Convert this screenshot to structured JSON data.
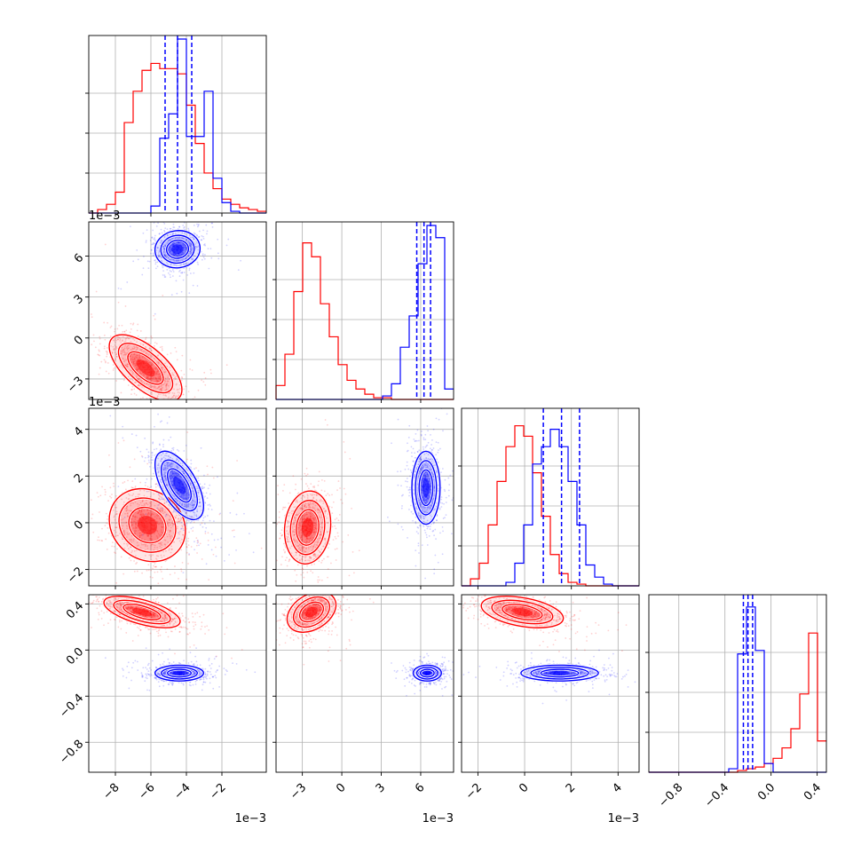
{
  "colors": {
    "red": "#ff0000",
    "blue": "#0000ff",
    "grid": "#b0b0b0",
    "axis": "#000000"
  },
  "axes": [
    {
      "xlim": [
        -9.5,
        0.5
      ],
      "ticks": [
        -8,
        -6,
        -4,
        -2
      ],
      "labels": [
        "−8",
        "−6",
        "−4",
        "−2"
      ],
      "offset": "1e−3"
    },
    {
      "ylim": [
        -4.5,
        8.5
      ],
      "xlim": [
        -5,
        8.5
      ],
      "ticks": [
        -3,
        0,
        3,
        6
      ],
      "labels": [
        "−3",
        "0",
        "3",
        "6"
      ],
      "offset": "1e−3"
    },
    {
      "ylim": [
        -2.7,
        4.9
      ],
      "xlim": [
        -2.7,
        4.9
      ],
      "ticks": [
        -2,
        0,
        2,
        4
      ],
      "labels": [
        "−2",
        "0",
        "2",
        "4"
      ],
      "offset": "1e−3"
    },
    {
      "ylim": [
        -1.06,
        0.48
      ],
      "xlim": [
        -1.06,
        0.48
      ],
      "ticks": [
        -0.8,
        -0.4,
        0.0,
        0.4
      ],
      "labels": [
        "−0.8",
        "−0.4",
        "0.0",
        "0.4"
      ],
      "offset": ""
    }
  ],
  "chart_data": {
    "type": "corner",
    "title": "",
    "parameters": 4,
    "series": [
      {
        "color": "red",
        "means": [
          -6.2,
          -2.2,
          -0.1,
          0.32
        ],
        "histograms": [
          [
            0.0,
            0.02,
            0.05,
            0.12,
            0.52,
            0.7,
            0.82,
            0.86,
            0.83,
            0.83,
            0.8,
            0.62,
            0.4,
            0.23,
            0.14,
            0.08,
            0.05,
            0.03,
            0.02,
            0.01
          ],
          [
            0.08,
            0.26,
            0.62,
            0.9,
            0.82,
            0.55,
            0.36,
            0.2,
            0.11,
            0.06,
            0.03,
            0.01,
            0.01,
            0,
            0,
            0,
            0,
            0,
            0,
            0
          ],
          [
            0.0,
            0.04,
            0.13,
            0.35,
            0.6,
            0.8,
            0.92,
            0.86,
            0.65,
            0.4,
            0.18,
            0.07,
            0.02,
            0.01,
            0,
            0,
            0,
            0,
            0,
            0
          ],
          [
            0,
            0,
            0,
            0,
            0,
            0,
            0,
            0,
            0,
            0,
            0.01,
            0.02,
            0.03,
            0.05,
            0.08,
            0.14,
            0.25,
            0.45,
            0.8,
            0.18
          ]
        ]
      },
      {
        "color": "blue",
        "means": [
          -4.5,
          6.5,
          1.5,
          -0.2
        ],
        "quantiles": [
          [
            -5.2,
            -4.5,
            -3.7
          ],
          [
            5.7,
            6.25,
            6.75
          ],
          [
            0.8,
            1.58,
            2.35
          ],
          [
            -0.24,
            -0.2,
            -0.16
          ]
        ],
        "histograms": [
          [
            0,
            0,
            0,
            0,
            0,
            0,
            0,
            0.04,
            0.43,
            0.57,
            1.0,
            0.44,
            0.44,
            0.7,
            0.2,
            0.06,
            0.01,
            0,
            0,
            0
          ],
          [
            0,
            0,
            0,
            0,
            0,
            0,
            0,
            0,
            0,
            0,
            0,
            0,
            0.02,
            0.09,
            0.3,
            0.48,
            0.78,
            1.0,
            0.93,
            0.06
          ],
          [
            0,
            0,
            0,
            0,
            0,
            0.02,
            0.13,
            0.35,
            0.7,
            0.8,
            0.9,
            0.8,
            0.6,
            0.35,
            0.12,
            0.05,
            0.01,
            0,
            0,
            0
          ],
          [
            0,
            0,
            0,
            0,
            0,
            0,
            0,
            0,
            0,
            0.02,
            0.68,
            0.95,
            0.7,
            0.05,
            0,
            0,
            0,
            0,
            0,
            0
          ]
        ]
      }
    ],
    "clouds": {
      "red": [
        {
          "pair": [
            0,
            1
          ],
          "mean": [
            -6.3,
            -2.2
          ],
          "sd": [
            1.05,
            1.25
          ],
          "rho": -0.65
        },
        {
          "pair": [
            0,
            2
          ],
          "mean": [
            -6.2,
            -0.1
          ],
          "sd": [
            1.1,
            0.8
          ],
          "rho": -0.15
        },
        {
          "pair": [
            1,
            2
          ],
          "mean": [
            -2.6,
            -0.2
          ],
          "sd": [
            0.9,
            0.8
          ],
          "rho": 0.1
        },
        {
          "pair": [
            0,
            3
          ],
          "mean": [
            -6.5,
            0.33
          ],
          "sd": [
            1.1,
            0.07
          ],
          "rho": -0.6
        },
        {
          "pair": [
            1,
            3
          ],
          "mean": [
            -2.3,
            0.33
          ],
          "sd": [
            0.95,
            0.09
          ],
          "rho": 0.35
        },
        {
          "pair": [
            2,
            3
          ],
          "mean": [
            -0.1,
            0.33
          ],
          "sd": [
            0.9,
            0.07
          ],
          "rho": -0.4
        }
      ],
      "blue": [
        {
          "pair": [
            0,
            1
          ],
          "mean": [
            -4.5,
            6.5
          ],
          "sd": [
            0.65,
            0.7
          ],
          "rho": 0.05
        },
        {
          "pair": [
            0,
            2
          ],
          "mean": [
            -4.4,
            1.6
          ],
          "sd": [
            0.7,
            0.75
          ],
          "rho": -0.6
        },
        {
          "pair": [
            1,
            2
          ],
          "mean": [
            6.4,
            1.5
          ],
          "sd": [
            0.55,
            0.8
          ],
          "rho": 0.0
        },
        {
          "pair": [
            0,
            3
          ],
          "mean": [
            -4.4,
            -0.2
          ],
          "sd": [
            0.7,
            0.035
          ],
          "rho": 0.0
        },
        {
          "pair": [
            1,
            3
          ],
          "mean": [
            6.5,
            -0.2
          ],
          "sd": [
            0.55,
            0.035
          ],
          "rho": 0.0
        },
        {
          "pair": [
            2,
            3
          ],
          "mean": [
            1.5,
            -0.2
          ],
          "sd": [
            0.85,
            0.035
          ],
          "rho": 0.0
        }
      ]
    }
  }
}
